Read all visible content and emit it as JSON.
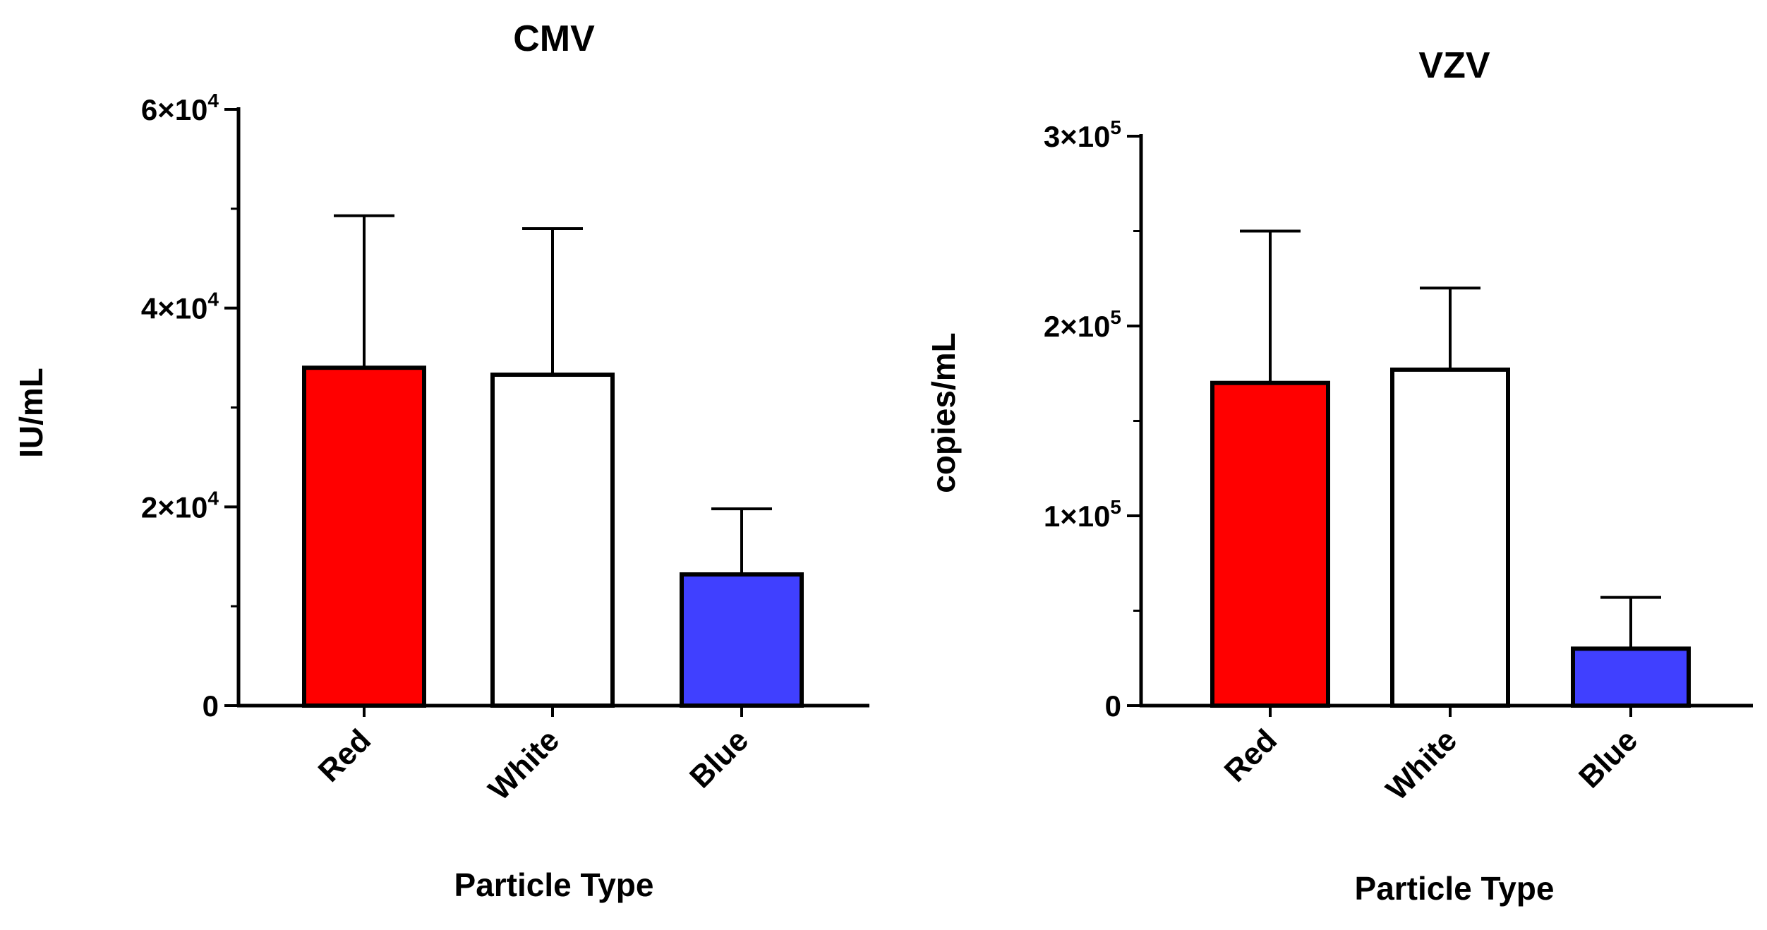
{
  "chart_data": [
    {
      "type": "bar",
      "title": "CMV",
      "xlabel": "Particle Type",
      "ylabel": "IU/mL",
      "categories": [
        "Red",
        "White",
        "Blue"
      ],
      "values": [
        34000,
        33300,
        13200
      ],
      "errors": [
        15300,
        14700,
        6600
      ],
      "colors": [
        "#ff0000",
        "#ffffff",
        "#4040ff"
      ],
      "ylim": [
        0,
        60000
      ],
      "ticks": [
        {
          "value": 0,
          "mantissa": "0",
          "exp": ""
        },
        {
          "value": 20000,
          "mantissa": "2×10",
          "exp": "4"
        },
        {
          "value": 40000,
          "mantissa": "4×10",
          "exp": "4"
        },
        {
          "value": 60000,
          "mantissa": "6×10",
          "exp": "4"
        }
      ],
      "minor_ticks": [
        10000,
        30000,
        50000
      ],
      "grid": false
    },
    {
      "type": "bar",
      "title": "VZV",
      "xlabel": "Particle Type",
      "ylabel": "copies/mL",
      "categories": [
        "Red",
        "White",
        "Blue"
      ],
      "values": [
        170000,
        177000,
        30000
      ],
      "errors": [
        80000,
        43000,
        27000
      ],
      "colors": [
        "#ff0000",
        "#ffffff",
        "#4040ff"
      ],
      "ylim": [
        0,
        300000
      ],
      "ticks": [
        {
          "value": 0,
          "mantissa": "0",
          "exp": ""
        },
        {
          "value": 100000,
          "mantissa": "1×10",
          "exp": "5"
        },
        {
          "value": 200000,
          "mantissa": "2×10",
          "exp": "5"
        },
        {
          "value": 300000,
          "mantissa": "3×10",
          "exp": "5"
        }
      ],
      "minor_ticks": [
        50000,
        150000,
        250000
      ],
      "grid": false
    }
  ]
}
